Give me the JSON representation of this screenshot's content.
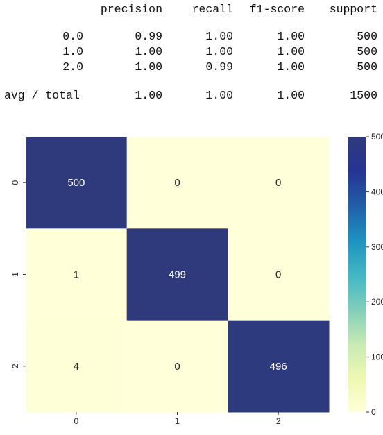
{
  "report": {
    "headers": [
      "precision",
      "recall",
      "f1-score",
      "support"
    ],
    "rows": [
      {
        "label": "0.0",
        "precision": "0.99",
        "recall": "1.00",
        "f1": "1.00",
        "support": "500"
      },
      {
        "label": "1.0",
        "precision": "1.00",
        "recall": "1.00",
        "f1": "1.00",
        "support": "500"
      },
      {
        "label": "2.0",
        "precision": "1.00",
        "recall": "0.99",
        "f1": "1.00",
        "support": "500"
      }
    ],
    "total": {
      "label": "avg / total",
      "precision": "1.00",
      "recall": "1.00",
      "f1": "1.00",
      "support": "1500"
    }
  },
  "chart_data": {
    "type": "heatmap",
    "title": "",
    "xlabel": "",
    "ylabel": "",
    "x_categories": [
      "0",
      "1",
      "2"
    ],
    "y_categories": [
      "0",
      "1",
      "2"
    ],
    "values": [
      [
        500,
        0,
        0
      ],
      [
        1,
        499,
        0
      ],
      [
        4,
        0,
        496
      ]
    ],
    "colormap": "YlGnBu",
    "colorbar": {
      "min": 0,
      "max": 500,
      "ticks": [
        0,
        100,
        200,
        300,
        400,
        500
      ]
    },
    "colors": {
      "low": "#ffffd9",
      "high": "#253494",
      "label_light": "#ffffff",
      "label_dark": "#262626"
    }
  }
}
